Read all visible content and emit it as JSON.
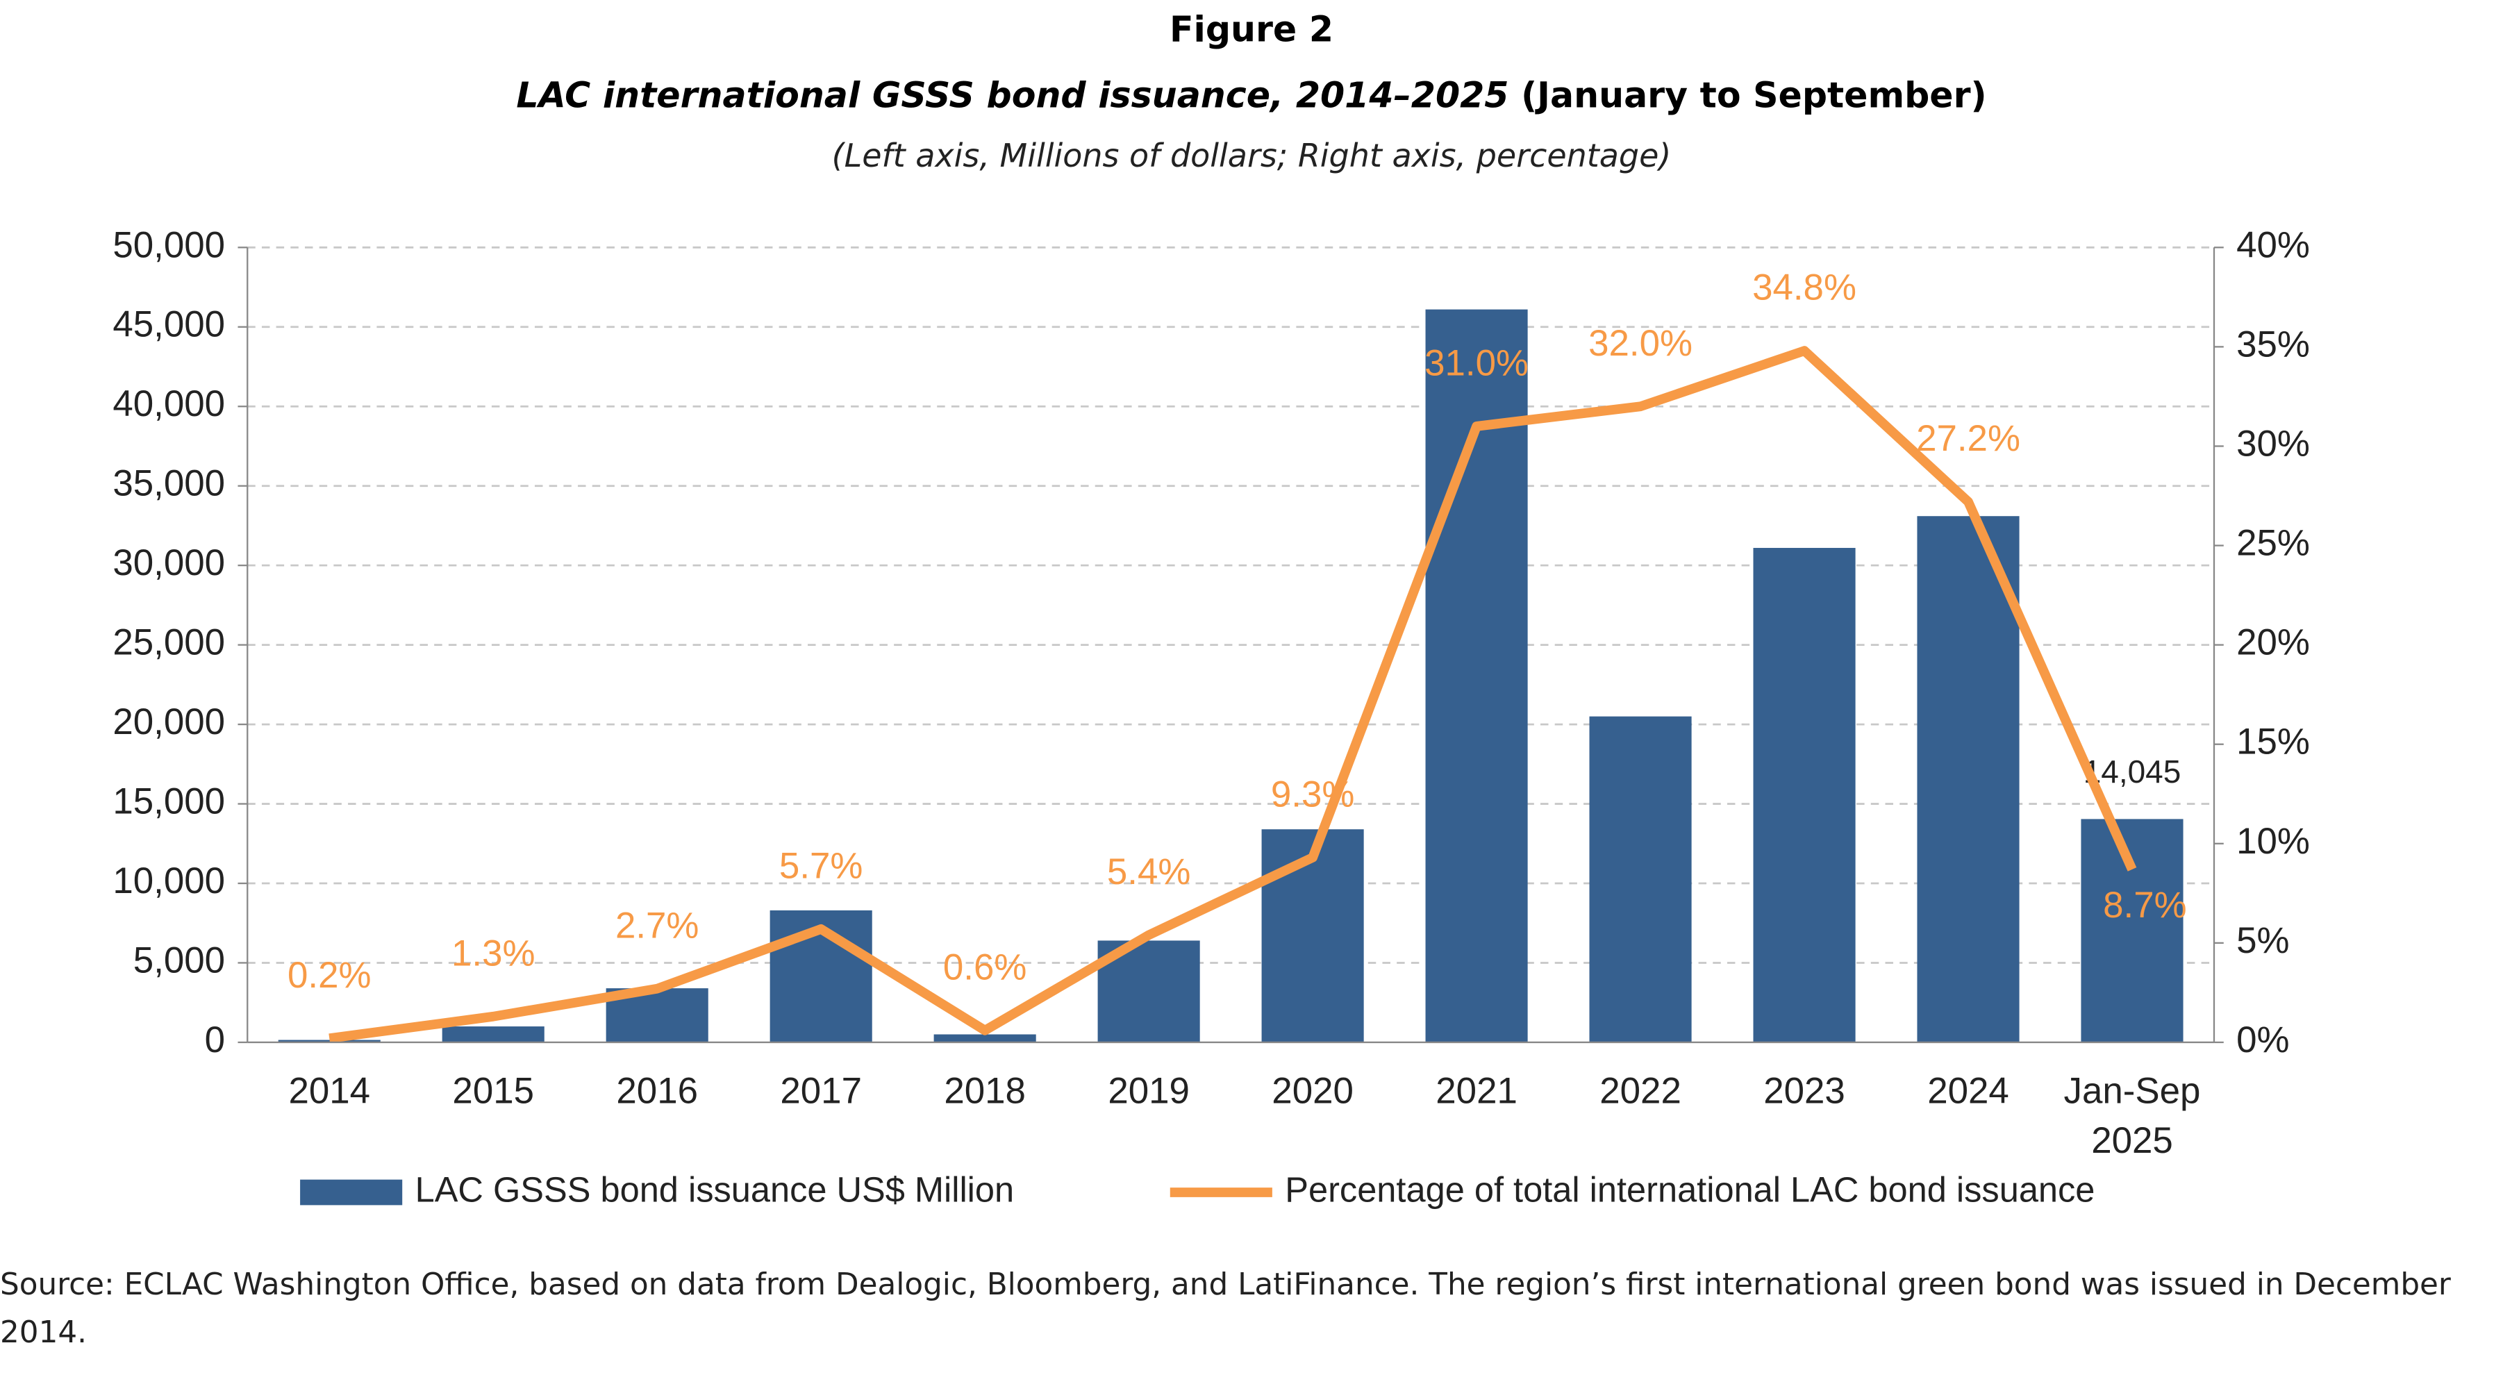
{
  "chart_data": {
    "type": "bar-line",
    "figure_label": "Figure 2",
    "title": "LAC international GSSS bond issuance, 2014–2025",
    "title_period": "(January to September)",
    "subtitle": "(Left axis, Millions of dollars; Right axis, percentage)",
    "categories": [
      "2014",
      "2015",
      "2016",
      "2017",
      "2018",
      "2019",
      "2020",
      "2021",
      "2022",
      "2023",
      "2024",
      "Jan-Sep 2025"
    ],
    "series": [
      {
        "name": "LAC GSSS bond issuance US$ Million",
        "type": "bar",
        "color": "#36608f",
        "values": [
          150,
          1000,
          3400,
          8300,
          500,
          6400,
          13400,
          46100,
          20500,
          31100,
          33100,
          14045
        ],
        "value_labels": [
          null,
          null,
          null,
          null,
          null,
          null,
          null,
          null,
          null,
          null,
          null,
          "14,045"
        ]
      },
      {
        "name": "Percentage of total international LAC bond issuance",
        "type": "line",
        "axis": "y2",
        "color": "#f79a46",
        "values": [
          0.2,
          1.3,
          2.7,
          5.7,
          0.6,
          5.4,
          9.3,
          31.0,
          32.0,
          34.8,
          27.2,
          8.7
        ],
        "value_labels": [
          "0.2%",
          "1.3%",
          "2.7%",
          "5.7%",
          "0.6%",
          "5.4%",
          "9.3%",
          "31.0%",
          "32.0%",
          "34.8%",
          "27.2%",
          "8.7%"
        ]
      }
    ],
    "ylim": [
      0,
      50000
    ],
    "yticks": [
      0,
      {
        "value": 5000,
        "label": "5,000"
      },
      {
        "value": 10000,
        "label": "10,000"
      },
      {
        "value": 15000,
        "label": "15,000"
      },
      {
        "value": 20000,
        "label": "20,000"
      },
      {
        "value": 25000,
        "label": "25,000"
      },
      {
        "value": 30000,
        "label": "30,000"
      },
      {
        "value": 35000,
        "label": "35,000"
      },
      {
        "value": 40000,
        "label": "40,000"
      },
      {
        "value": 45000,
        "label": "45,000"
      },
      {
        "value": 50000,
        "label": "50,000"
      }
    ],
    "y2lim": [
      0,
      40
    ],
    "y2ticks": [
      {
        "value": 0,
        "label": "0%"
      },
      {
        "value": 5,
        "label": "5%"
      },
      {
        "value": 10,
        "label": "10%"
      },
      {
        "value": 15,
        "label": "15%"
      },
      {
        "value": 20,
        "label": "20%"
      },
      {
        "value": 25,
        "label": "25%"
      },
      {
        "value": 30,
        "label": "30%"
      },
      {
        "value": 35,
        "label": "35%"
      },
      {
        "value": 40,
        "label": "40%"
      }
    ],
    "grid": true,
    "legend": "bottom",
    "source": "Source: ECLAC Washington Office, based on data from Dealogic, Bloomberg, and LatiFinance. The region’s first international green bond was issued in December 2014."
  }
}
